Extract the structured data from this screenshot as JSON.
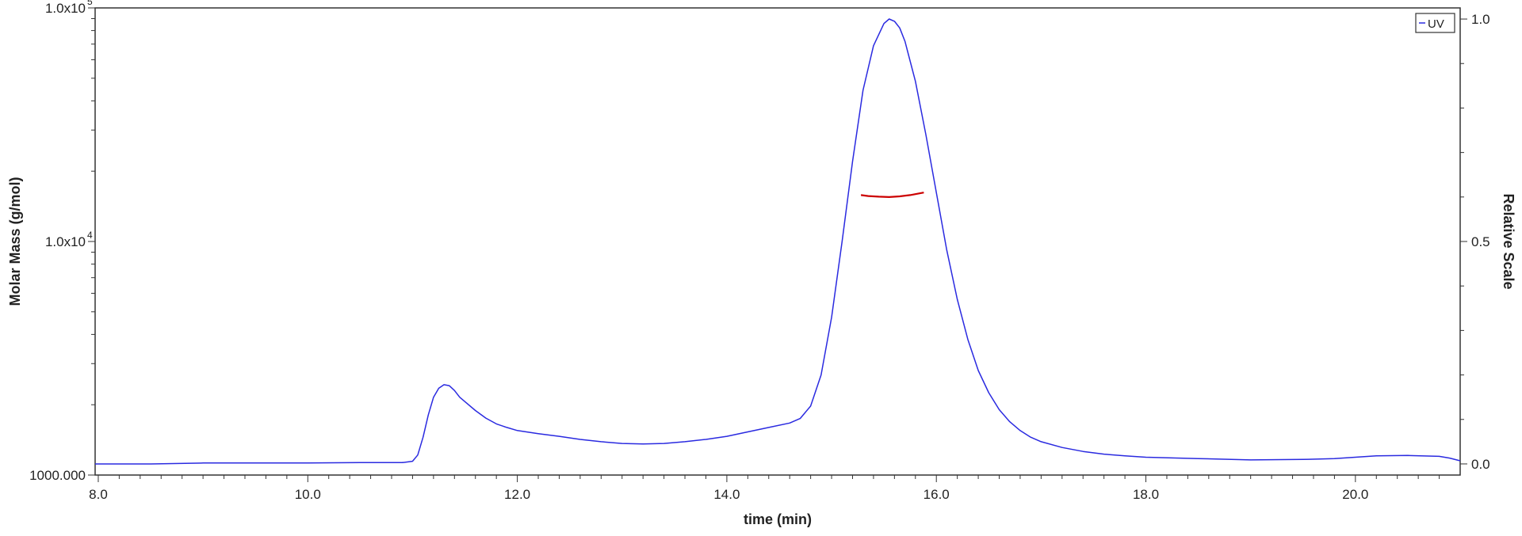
{
  "chart_data": {
    "type": "line",
    "xlabel": "time (min)",
    "ylabel_left": "Molar Mass (g/mol)",
    "ylabel_right": "Relative Scale",
    "xlim": [
      7.97,
      21.0
    ],
    "ylim_left": [
      1000,
      100000
    ],
    "ylim_right": [
      -0.025,
      1.025
    ],
    "y_left_scale": "log",
    "x_ticks": [
      {
        "value": 8.0,
        "label": "8.0"
      },
      {
        "value": 10.0,
        "label": "10.0"
      },
      {
        "value": 12.0,
        "label": "12.0"
      },
      {
        "value": 14.0,
        "label": "14.0"
      },
      {
        "value": 16.0,
        "label": "16.0"
      },
      {
        "value": 18.0,
        "label": "18.0"
      },
      {
        "value": 20.0,
        "label": "20.0"
      }
    ],
    "y_left_ticks": [
      {
        "value": 100000,
        "label": "1.0x10",
        "sup": "5"
      },
      {
        "value": 10000,
        "label": "1.0x10",
        "sup": "4"
      },
      {
        "value": 1000,
        "label": "1000.000",
        "sup": ""
      }
    ],
    "y_right_ticks": [
      {
        "value": 1.0,
        "label": "1.0"
      },
      {
        "value": 0.5,
        "label": "0.5"
      },
      {
        "value": 0.0,
        "label": "0.0"
      }
    ],
    "legend": {
      "entries": [
        "UV"
      ],
      "position": "top-right"
    },
    "series": [
      {
        "name": "UV",
        "axis": "right",
        "color": "#2a2ae0",
        "x": [
          7.97,
          8.5,
          9.0,
          9.5,
          10.0,
          10.5,
          10.9,
          11.0,
          11.05,
          11.1,
          11.15,
          11.2,
          11.25,
          11.3,
          11.35,
          11.4,
          11.45,
          11.5,
          11.6,
          11.7,
          11.8,
          11.9,
          12.0,
          12.2,
          12.4,
          12.6,
          12.8,
          13.0,
          13.2,
          13.4,
          13.6,
          13.8,
          14.0,
          14.2,
          14.4,
          14.6,
          14.7,
          14.8,
          14.9,
          15.0,
          15.1,
          15.2,
          15.3,
          15.4,
          15.5,
          15.55,
          15.6,
          15.65,
          15.7,
          15.8,
          15.9,
          16.0,
          16.1,
          16.2,
          16.3,
          16.4,
          16.5,
          16.6,
          16.7,
          16.8,
          16.9,
          17.0,
          17.2,
          17.4,
          17.6,
          17.8,
          18.0,
          18.5,
          19.0,
          19.5,
          19.8,
          20.0,
          20.2,
          20.5,
          20.8,
          20.9,
          21.0
        ],
        "y": [
          0.0,
          0.0,
          0.002,
          0.002,
          0.002,
          0.003,
          0.003,
          0.006,
          0.02,
          0.06,
          0.11,
          0.15,
          0.17,
          0.178,
          0.176,
          0.165,
          0.15,
          0.14,
          0.12,
          0.103,
          0.09,
          0.082,
          0.075,
          0.068,
          0.062,
          0.055,
          0.05,
          0.046,
          0.045,
          0.046,
          0.05,
          0.055,
          0.062,
          0.072,
          0.082,
          0.092,
          0.102,
          0.13,
          0.2,
          0.33,
          0.5,
          0.68,
          0.84,
          0.94,
          0.99,
          1.0,
          0.995,
          0.98,
          0.95,
          0.86,
          0.74,
          0.61,
          0.48,
          0.37,
          0.28,
          0.21,
          0.16,
          0.122,
          0.095,
          0.075,
          0.06,
          0.05,
          0.037,
          0.028,
          0.022,
          0.018,
          0.015,
          0.012,
          0.009,
          0.01,
          0.012,
          0.015,
          0.018,
          0.019,
          0.017,
          0.013,
          0.007
        ]
      },
      {
        "name": "",
        "axis": "left",
        "color": "#cc0000",
        "x": [
          15.28,
          15.35,
          15.45,
          15.55,
          15.65,
          15.75,
          15.88
        ],
        "y": [
          15800,
          15650,
          15550,
          15500,
          15600,
          15800,
          16200
        ]
      }
    ]
  }
}
